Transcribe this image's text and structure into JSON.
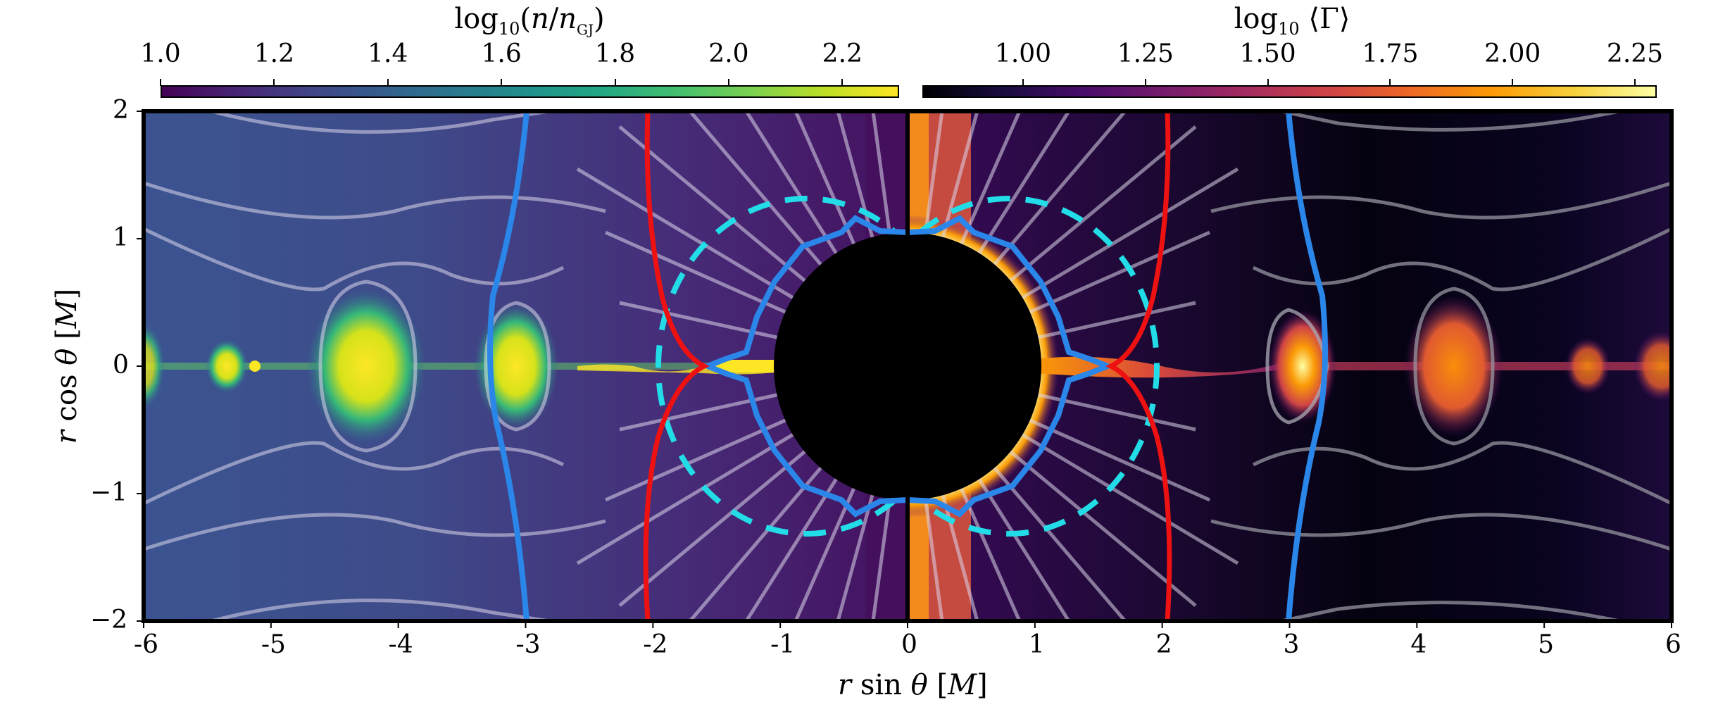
{
  "figure": {
    "colorbar_left": {
      "title": "log₁₀(n/n_GJ)",
      "ticks": [
        "1.0",
        "1.2",
        "1.4",
        "1.6",
        "1.8",
        "2.0",
        "2.2"
      ],
      "colormap": "viridis",
      "range": [
        1.0,
        2.3
      ]
    },
    "colorbar_right": {
      "title": "log₁₀⟨Γ⟩",
      "ticks": [
        "1.00",
        "1.25",
        "1.50",
        "1.75",
        "2.00",
        "2.25"
      ],
      "colormap": "inferno",
      "range": [
        0.9,
        2.3
      ]
    },
    "xaxis": {
      "label": "r sin θ [M]",
      "ticks": [
        "-6",
        "-5",
        "-4",
        "-3",
        "-2",
        "-1",
        "0",
        "1",
        "2",
        "3",
        "4",
        "5",
        "6"
      ]
    },
    "yaxis": {
      "label": "r cos θ [M]",
      "ticks": [
        "2",
        "1",
        "0",
        "−1",
        "−2"
      ]
    }
  },
  "chart_data": {
    "type": "heatmap",
    "title": "",
    "xlabel": "r sin θ [M]",
    "ylabel": "r cos θ [M]",
    "xlim": [
      -6,
      6
    ],
    "ylim": [
      -2,
      2
    ],
    "panels": [
      {
        "side": "left",
        "x_range": [
          -6,
          0
        ],
        "quantity": "log10(n/n_GJ)",
        "colormap": "viridis",
        "clim": [
          1.0,
          2.3
        ]
      },
      {
        "side": "right",
        "x_range": [
          0,
          6
        ],
        "quantity": "log10<Gamma>",
        "colormap": "inferno",
        "clim": [
          0.9,
          2.3
        ]
      }
    ],
    "overlays": {
      "black_hole": {
        "center": [
          0,
          0
        ],
        "radius": 1.05,
        "color": "#000000"
      },
      "dashed_circle_ergosphere": {
        "color": "#22d8e6",
        "style": "dashed",
        "centers": [
          [
            -0.8,
            0
          ],
          [
            0.8,
            0
          ]
        ],
        "radius_x": 1.05,
        "radius_y": 1.3
      },
      "blue_contour_inner": {
        "color": "#2a86e8",
        "approx_extent_x": 1.6,
        "approx_extent_y": 1.15
      },
      "blue_contour_outer": {
        "color": "#2a86e8",
        "approx_x": [
          -3.0,
          3.0
        ]
      },
      "red_contour_light_cylinder": {
        "color": "#ee1111",
        "approx_x": [
          -2.05,
          2.05
        ],
        "pinch_at_equator_x": 1.65
      },
      "field_lines": {
        "color": "rgba(220,220,235,0.55)"
      }
    },
    "plasmoids": {
      "left": [
        {
          "x": -5.3,
          "y": 0
        },
        {
          "x": -4.3,
          "y": 0
        },
        {
          "x": -3.0,
          "y": 0
        }
      ],
      "right": [
        {
          "x": 3.1,
          "y": 0
        },
        {
          "x": 4.3,
          "y": 0
        },
        {
          "x": 5.3,
          "y": 0
        },
        {
          "x": 5.9,
          "y": 0
        }
      ]
    }
  }
}
